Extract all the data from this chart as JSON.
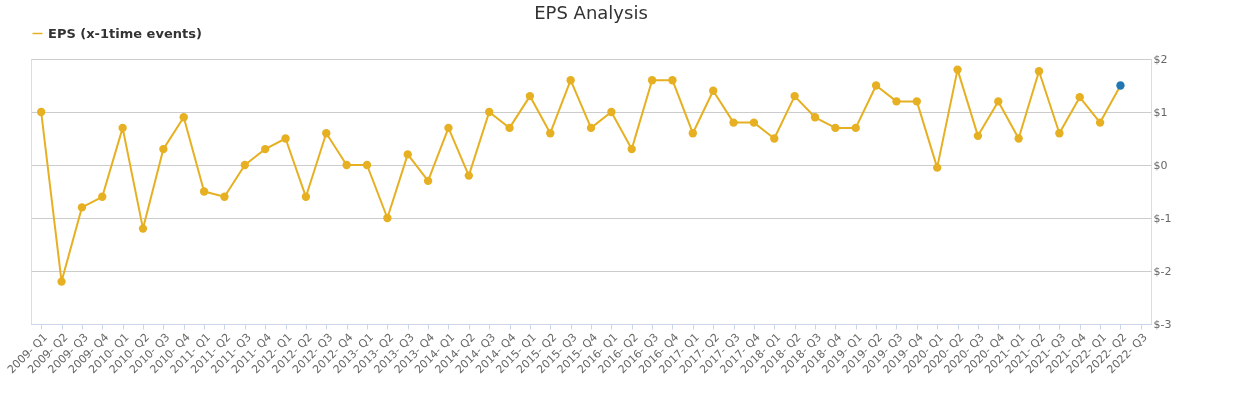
{
  "chart_data": {
    "type": "line",
    "title": "EPS Analysis",
    "categories": [
      "2009- Q1",
      "2009- Q2",
      "2009- Q3",
      "2009- Q4",
      "2010- Q1",
      "2010- Q2",
      "2010- Q3",
      "2010- Q4",
      "2011- Q1",
      "2011- Q2",
      "2011- Q3",
      "2011- Q4",
      "2012- Q1",
      "2012- Q2",
      "2012- Q3",
      "2012- Q4",
      "2013- Q1",
      "2013- Q2",
      "2013- Q3",
      "2013- Q4",
      "2014- Q1",
      "2014- Q2",
      "2014- Q3",
      "2014- Q4",
      "2015- Q1",
      "2015- Q2",
      "2015- Q3",
      "2015- Q4",
      "2016- Q1",
      "2016- Q2",
      "2016- Q3",
      "2016- Q4",
      "2017- Q1",
      "2017- Q2",
      "2017- Q3",
      "2017- Q4",
      "2018- Q1",
      "2018- Q2",
      "2018- Q3",
      "2018- Q4",
      "2019- Q1",
      "2019- Q2",
      "2019- Q3",
      "2019- Q4",
      "2020- Q1",
      "2020- Q2",
      "2020- Q3",
      "2020- Q4",
      "2021- Q1",
      "2021- Q2",
      "2021- Q3",
      "2021- Q4",
      "2022- Q1",
      "2022- Q2",
      "2022- Q3"
    ],
    "series": [
      {
        "name": "EPS (x-1time events)",
        "color": "#e6b022",
        "values": [
          1.0,
          -2.2,
          -0.8,
          -0.6,
          0.7,
          -1.2,
          0.3,
          0.9,
          -0.5,
          -0.6,
          0.0,
          0.3,
          0.5,
          -0.6,
          0.6,
          0.0,
          0.0,
          -1.0,
          0.2,
          -0.3,
          0.7,
          -0.2,
          1.0,
          0.7,
          1.3,
          0.6,
          1.6,
          0.7,
          1.0,
          0.3,
          1.6,
          1.6,
          0.6,
          1.4,
          0.8,
          0.8,
          0.5,
          1.3,
          0.9,
          0.7,
          0.7,
          1.5,
          1.2,
          1.2,
          -0.05,
          1.8,
          0.55,
          1.2,
          0.5,
          1.77,
          0.6,
          1.28,
          0.8,
          1.5,
          null
        ],
        "colors": [
          "#e6b022",
          "#e6b022",
          "#e6b022",
          "#e6b022",
          "#e6b022",
          "#e6b022",
          "#e6b022",
          "#e6b022",
          "#e6b022",
          "#e6b022",
          "#e6b022",
          "#e6b022",
          "#e6b022",
          "#e6b022",
          "#e6b022",
          "#e6b022",
          "#e6b022",
          "#e6b022",
          "#e6b022",
          "#e6b022",
          "#e6b022",
          "#e6b022",
          "#e6b022",
          "#e6b022",
          "#e6b022",
          "#e6b022",
          "#e6b022",
          "#e6b022",
          "#e6b022",
          "#e6b022",
          "#e6b022",
          "#e6b022",
          "#e6b022",
          "#e6b022",
          "#e6b022",
          "#e6b022",
          "#e6b022",
          "#e6b022",
          "#e6b022",
          "#e6b022",
          "#e6b022",
          "#e6b022",
          "#e6b022",
          "#e6b022",
          "#e6b022",
          "#e6b022",
          "#e6b022",
          "#e6b022",
          "#e6b022",
          "#e6b022",
          "#e6b022",
          "#e6b022",
          "#e6b022",
          "#1f77b4",
          "#e6b022"
        ]
      }
    ],
    "ylim": [
      -3,
      2
    ],
    "yticks": [
      {
        "value": -3,
        "label": "$-3"
      },
      {
        "value": -2,
        "label": "$-2"
      },
      {
        "value": -1,
        "label": "$-1"
      },
      {
        "value": 0,
        "label": "$0"
      },
      {
        "value": 1,
        "label": "$1"
      },
      {
        "value": 2,
        "label": "$2"
      }
    ],
    "grid": "y",
    "legend": "top",
    "marker": "circle",
    "line_style": "solid"
  }
}
